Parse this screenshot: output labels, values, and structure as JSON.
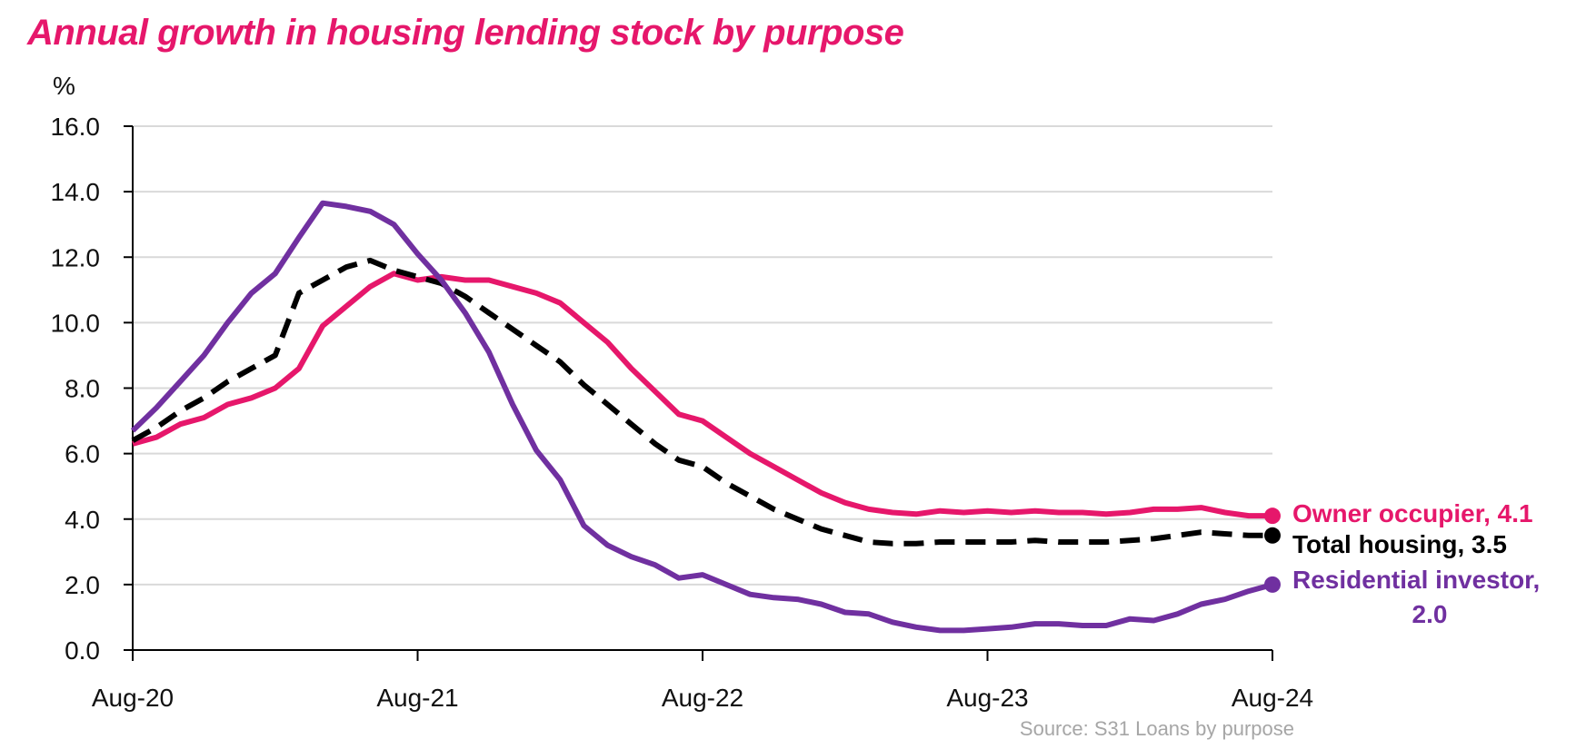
{
  "title": "Annual growth in housing lending stock by purpose",
  "source": "Source: S31 Loans by purpose",
  "chart_data": {
    "type": "line",
    "title": "Annual growth in housing lending stock by purpose",
    "ylabel": "%",
    "xlabel": "",
    "ylim": [
      0,
      16
    ],
    "yticks": [
      "0.0",
      "2.0",
      "4.0",
      "6.0",
      "8.0",
      "10.0",
      "12.0",
      "14.0",
      "16.0"
    ],
    "xticks": [
      "Aug-20",
      "Aug-21",
      "Aug-22",
      "Aug-23",
      "Aug-24"
    ],
    "grid": "horizontal",
    "x_start": "Aug-20",
    "x_end": "Aug-24",
    "series": [
      {
        "name": "Owner occupier",
        "color": "#e6176b",
        "style": "solid",
        "end_value": "4.1",
        "values": [
          6.3,
          6.5,
          6.9,
          7.1,
          7.5,
          7.7,
          8.0,
          8.6,
          9.9,
          10.5,
          11.1,
          11.5,
          11.3,
          11.4,
          11.3,
          11.3,
          11.1,
          10.9,
          10.6,
          10.0,
          9.4,
          8.6,
          7.9,
          7.2,
          7.0,
          6.5,
          6.0,
          5.6,
          5.2,
          4.8,
          4.5,
          4.3,
          4.2,
          4.15,
          4.25,
          4.2,
          4.25,
          4.2,
          4.25,
          4.2,
          4.2,
          4.15,
          4.2,
          4.3,
          4.3,
          4.35,
          4.2,
          4.1,
          4.1
        ]
      },
      {
        "name": "Total housing",
        "color": "#000000",
        "style": "dashed",
        "end_value": "3.5",
        "values": [
          6.4,
          6.8,
          7.3,
          7.7,
          8.2,
          8.6,
          9.0,
          10.9,
          11.3,
          11.7,
          11.9,
          11.6,
          11.4,
          11.2,
          10.8,
          10.3,
          9.8,
          9.3,
          8.8,
          8.1,
          7.5,
          6.9,
          6.3,
          5.8,
          5.6,
          5.1,
          4.7,
          4.3,
          4.0,
          3.7,
          3.5,
          3.3,
          3.25,
          3.25,
          3.3,
          3.3,
          3.3,
          3.3,
          3.35,
          3.3,
          3.3,
          3.3,
          3.35,
          3.4,
          3.5,
          3.6,
          3.55,
          3.5,
          3.5
        ]
      },
      {
        "name": "Residential investor",
        "color": "#7030a0",
        "style": "solid",
        "end_value": "2.0",
        "values": [
          6.7,
          7.4,
          8.2,
          9.0,
          10.0,
          10.9,
          11.5,
          12.6,
          13.65,
          13.55,
          13.4,
          13.0,
          12.1,
          11.3,
          10.3,
          9.1,
          7.5,
          6.1,
          5.2,
          3.8,
          3.2,
          2.85,
          2.6,
          2.2,
          2.3,
          2.0,
          1.7,
          1.6,
          1.55,
          1.4,
          1.15,
          1.1,
          0.85,
          0.7,
          0.6,
          0.6,
          0.65,
          0.7,
          0.8,
          0.8,
          0.75,
          0.75,
          0.95,
          0.9,
          1.1,
          1.4,
          1.55,
          1.8,
          2.0
        ]
      }
    ],
    "end_labels": [
      {
        "line1": "Owner occupier,",
        "value": "4.1",
        "color": "#e6176b"
      },
      {
        "line1": "Total housing,",
        "value": "3.5",
        "color": "#000000"
      },
      {
        "line1": "Residential investor,",
        "value": "2.0",
        "color": "#7030a0"
      }
    ]
  }
}
